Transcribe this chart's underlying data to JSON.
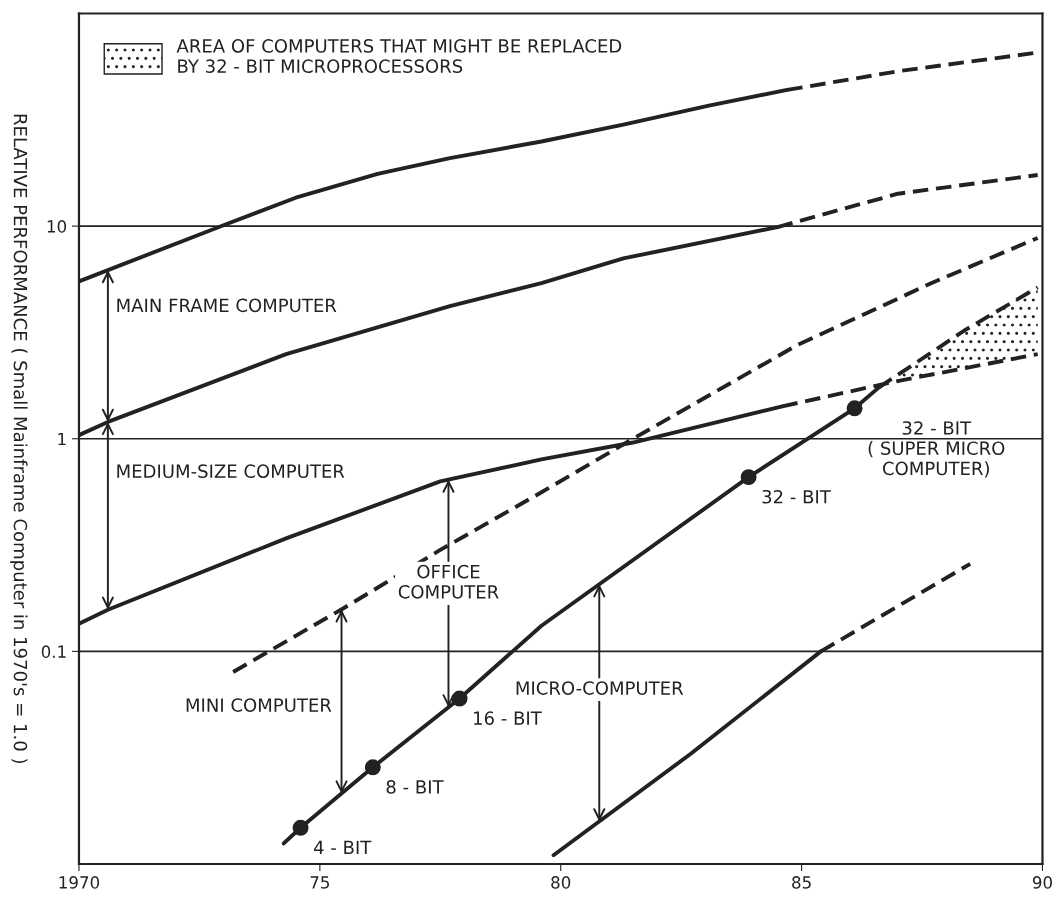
{
  "chart_data": {
    "type": "line",
    "ylabel": "RELATIVE PERFORMANCE ( Small Mainframe Computer in 1970's = 1.0 )",
    "log": true,
    "grid": "y",
    "legend": "top left",
    "xlim": [
      1970,
      1990
    ],
    "xticks": [
      1970,
      {
        "value": 1975,
        "label": "75"
      },
      {
        "value": 1980,
        "label": "80"
      },
      {
        "value": 1985,
        "label": "85"
      },
      {
        "value": 1990,
        "label": "90"
      }
    ],
    "ylim": [
      0.01,
      100
    ],
    "yticks": [
      0.1,
      1,
      10
    ],
    "series": [
      {
        "line_style": "solid",
        "color": "#222222",
        "x": [
          1970.0,
          1973.0,
          1974.5,
          1976.2,
          1977.7,
          1979.6,
          1981.3,
          1983.1,
          1984.7
        ],
        "values": [
          5.5,
          10.1,
          13.6,
          17.6,
          20.9,
          25,
          30,
          37,
          43.7
        ]
      },
      {
        "line_style": "dashed",
        "color": "#222222",
        "x": [
          1984.7,
          1987.0,
          1989.9
        ],
        "values": [
          43.7,
          53.5,
          65.5
        ]
      },
      {
        "line_style": "solid",
        "color": "#222222",
        "x": [
          1970.0,
          1970.6,
          1974.3,
          1977.7,
          1979.6,
          1981.3,
          1984.5
        ],
        "values": [
          1.04,
          1.2,
          2.5,
          4.2,
          5.4,
          7.05,
          9.9
        ]
      },
      {
        "line_style": "dashed",
        "color": "#222222",
        "x": [
          1984.5,
          1987.0,
          1989.9
        ],
        "values": [
          9.9,
          14.2,
          17.4
        ]
      },
      {
        "line_style": "solid",
        "color": "#222222",
        "x": [
          1970.0,
          1970.6,
          1974.3,
          1977.5,
          1979.6,
          1981.5,
          1984.6
        ],
        "values": [
          0.135,
          0.157,
          0.34,
          0.63,
          0.8,
          0.96,
          1.42
        ]
      },
      {
        "line_style": "dashed",
        "color": "#222222",
        "name": "AREA OF COMPUTERS THAT MIGHT BE REPLACED\nBY 32 - BIT MICROPROCESSORS",
        "x": [
          1984.6,
          1986.9,
          1988.4,
          1989.9
        ],
        "values": [
          1.42,
          1.85,
          2.15,
          2.5
        ],
        "lower": [
          null,
          1.85,
          2.15,
          2.5
        ],
        "upper": [
          null,
          1.9,
          3.25,
          5.15
        ]
      },
      {
        "line_style": "dashed",
        "color": "#222222",
        "x": [
          1973.2,
          1975.5,
          1977.5,
          1979.6,
          1981.5,
          1984.9,
          1987.7,
          1989.9
        ],
        "values": [
          0.08,
          0.16,
          0.3,
          0.56,
          1.0,
          2.75,
          5.4,
          8.8
        ]
      },
      {
        "line_style": "solid",
        "color": "#222222",
        "x": [
          1974.25,
          1974.6,
          1976.1,
          1977.9,
          1979.6,
          1983.9,
          1986.1,
          1986.6
        ],
        "values": [
          0.0125,
          0.0148,
          0.0285,
          0.06,
          0.132,
          0.66,
          1.39,
          1.74
        ]
      },
      {
        "line_style": "dashed",
        "color": "#222222",
        "x": [
          1986.6,
          1988.4,
          1989.9
        ],
        "values": [
          1.74,
          3.25,
          5.15
        ]
      },
      {
        "line_style": "solid",
        "color": "#222222",
        "x": [
          1979.85,
          1982.7,
          1985.4
        ],
        "values": [
          0.011,
          0.033,
          0.1
        ]
      },
      {
        "line_style": "dashed",
        "color": "#222222",
        "x": [
          1985.4,
          1988.5
        ],
        "values": [
          0.1,
          0.258
        ]
      },
      {
        "type": "scatter",
        "marker": "circle",
        "color": "#222222",
        "x": [
          1974.6,
          1976.1,
          1977.9,
          1983.9,
          1986.1
        ],
        "values": [
          0.0148,
          0.0285,
          0.06,
          0.66,
          1.39
        ]
      }
    ],
    "annotations": [
      "MAIN FRAME COMPUTER",
      "MEDIUM-SIZE COMPUTER",
      "MINI COMPUTER",
      "OFFICE\nCOMPUTER",
      "MICRO-COMPUTER",
      {
        "text": "4 - BIT",
        "x": 1974.6,
        "y": 0.0148
      },
      {
        "text": "8 - BIT",
        "x": 1976.1,
        "y": 0.0285
      },
      {
        "text": "16 - BIT",
        "x": 1977.9,
        "y": 0.06
      },
      {
        "text": "32 - BIT",
        "x": 1983.9,
        "y": 0.66
      },
      {
        "text": "32 - BIT\n( SUPER MICRO\nCOMPUTER)",
        "x": 1986.1,
        "y": 1.39
      }
    ]
  }
}
